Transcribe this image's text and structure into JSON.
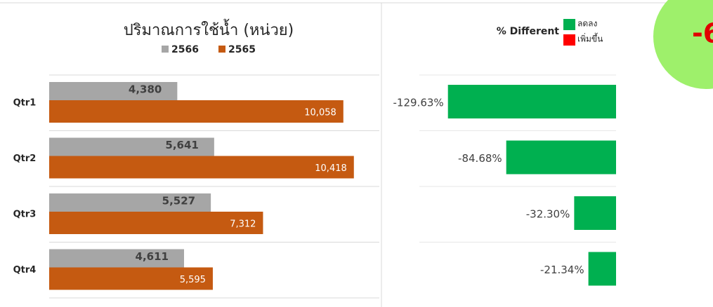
{
  "chart_data": [
    {
      "type": "hbar",
      "title": "ปริมาณการใช้น้ำ (หน่วย)",
      "categories": [
        "Qtr1",
        "Qtr2",
        "Qtr3",
        "Qtr4"
      ],
      "series": [
        {
          "name": "2566",
          "color": "#a6a6a6",
          "values": [
            4380,
            5641,
            5527,
            4611
          ],
          "value_labels": [
            "4,380",
            "5,641",
            "5,527",
            "4,611"
          ]
        },
        {
          "name": "2565",
          "color": "#c55a11",
          "values": [
            10058,
            10418,
            7312,
            5595
          ],
          "value_labels": [
            "10,058",
            "10,418",
            "7,312",
            "5,595"
          ]
        }
      ],
      "xlim": [
        0,
        11000
      ]
    },
    {
      "type": "diverging",
      "title": "% Different",
      "categories": [
        "Qtr1",
        "Qtr2",
        "Qtr3",
        "Qtr4"
      ],
      "values": [
        -129.63,
        -84.68,
        -32.3,
        -21.34
      ],
      "value_labels": [
        "-129.63%",
        "-84.68%",
        "-32.30%",
        "-21.34%"
      ],
      "legend": [
        {
          "name": "ลดลง",
          "color": "#00b050"
        },
        {
          "name": "เพิ่มขึ้น",
          "color": "#ff0000"
        }
      ],
      "xlim": [
        -130,
        0
      ]
    }
  ],
  "badge": {
    "text": "-6"
  }
}
